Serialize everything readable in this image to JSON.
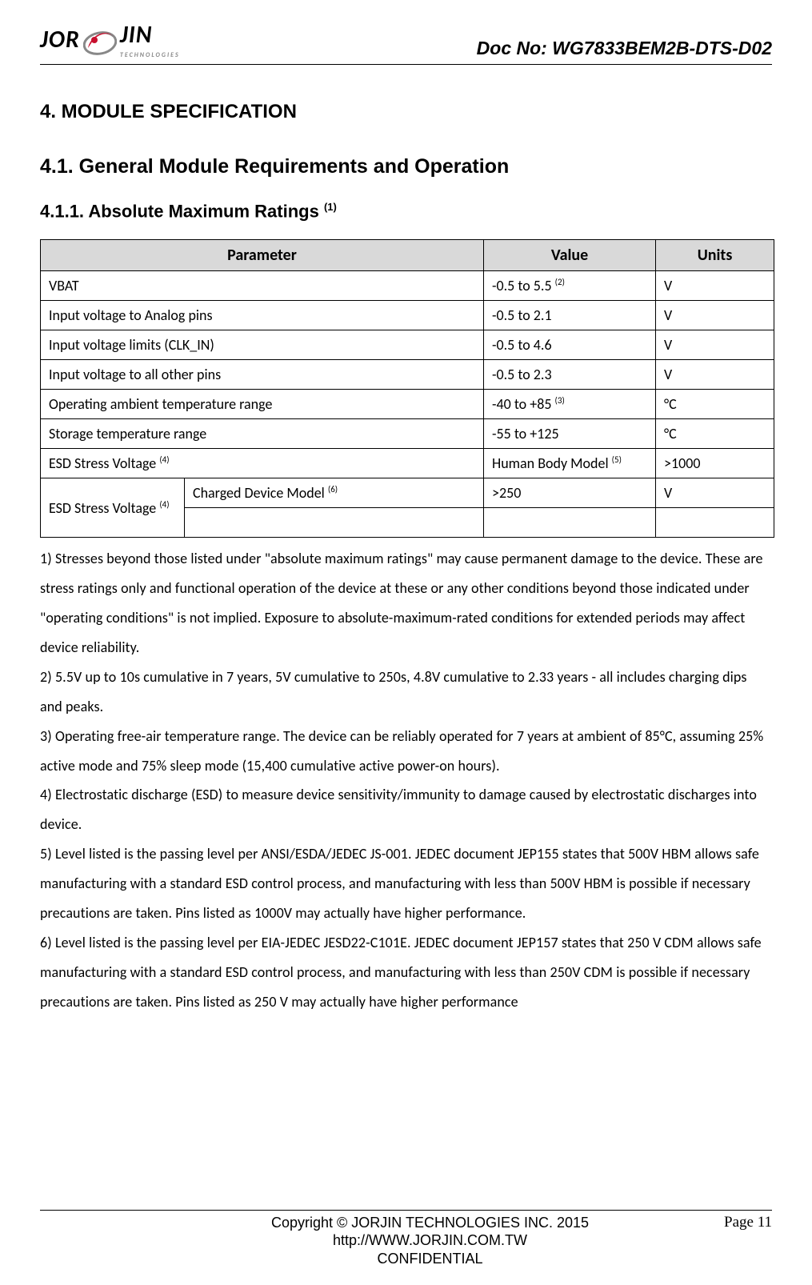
{
  "header": {
    "logo_word_left": "JOR",
    "logo_word_right": "JIN",
    "logo_sub": "TECHNOLOGIES",
    "logo_mark_color": "#c8102e",
    "logo_gray": "#888888",
    "docno": "Doc No: WG7833BEM2B-DTS-D02"
  },
  "headings": {
    "h4": "4.   MODULE SPECIFICATION",
    "h41": "4.1. General Module Requirements and Operation",
    "h411": "4.1.1. Absolute Maximum Ratings",
    "h411_sup": "(1)"
  },
  "table": {
    "columns": [
      "Parameter",
      "Value",
      "Units"
    ],
    "header_bg": "#d9d9d9",
    "border_color": "#000000",
    "rows": [
      {
        "param": "VBAT",
        "value": "-0.5 to 5.5 ",
        "value_sup": "(2)",
        "units": "V"
      },
      {
        "param": "Input voltage to Analog pins",
        "value": "-0.5 to 2.1",
        "value_sup": "",
        "units": "V"
      },
      {
        "param": "Input voltage limits (CLK_IN)",
        "value": "-0.5 to 4.6",
        "value_sup": "",
        "units": "V"
      },
      {
        "param": "Input voltage to all other pins",
        "value": "-0.5 to 2.3",
        "value_sup": "",
        "units": "V"
      },
      {
        "param": "Operating ambient temperature range",
        "value": "-40 to +85 ",
        "value_sup": "(3)",
        "units": "°C"
      },
      {
        "param": "Storage temperature range",
        "value": "-55 to +125",
        "value_sup": "",
        "units": "°C"
      }
    ],
    "row_esd_hbm": {
      "param": "ESD Stress Voltage ",
      "param_sup": "(4)",
      "value": "Human Body Model ",
      "value_sup": "(5)",
      "units": ">1000"
    },
    "row_esd_cdm": {
      "param_a": "ESD Stress Voltage ",
      "param_a_sup": "(4)",
      "param_b": "Charged Device Model ",
      "param_b_sup": "(6)",
      "value": ">250",
      "units": "V"
    }
  },
  "notes": {
    "n1": "1)    Stresses beyond those listed under \"absolute maximum ratings\" may cause permanent damage to the device. These are stress ratings only and functional operation of the device at these or any other conditions beyond those indicated under \"operating conditions\" is not implied. Exposure to absolute-maximum-rated conditions for extended periods may affect device reliability.",
    "n2": "2)    5.5V up to 10s cumulative in 7 years, 5V cumulative to 250s, 4.8V cumulative to 2.33 years - all includes charging dips and peaks.",
    "n3": "3)    Operating free-air temperature range. The device can be reliably operated for 7 years at ambient of 85°C, assuming 25% active mode and 75% sleep mode (15,400 cumulative active power-on hours).",
    "n4": "4)    Electrostatic discharge (ESD) to measure device sensitivity/immunity to damage caused by electrostatic discharges into device.",
    "n5": "5)    Level listed is the passing level per ANSI/ESDA/JEDEC JS-001. JEDEC document JEP155 states that 500V HBM allows safe manufacturing with a standard ESD control process, and manufacturing with less than 500V HBM is possible if necessary precautions are taken. Pins listed as 1000V may actually have higher performance.",
    "n6": "6)    Level listed is the passing level per EIA-JEDEC JESD22-C101E. JEDEC document JEP157 states that 250 V CDM allows safe    manufacturing with a standard ESD control process, and manufacturing with less than 250V CDM is possible if necessary precautions are taken. Pins listed as 250 V may actually have higher performance"
  },
  "footer": {
    "copyright": "Copyright © JORJIN TECHNOLOGIES INC. 2015",
    "url": "http://WWW.JORJIN.COM.TW",
    "conf": "CONFIDENTIAL",
    "page_label": "Page 11"
  }
}
